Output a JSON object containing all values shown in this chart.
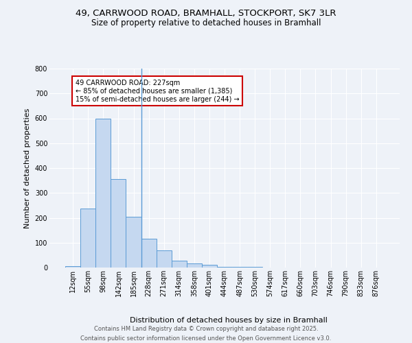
{
  "title_line1": "49, CARRWOOD ROAD, BRAMHALL, STOCKPORT, SK7 3LR",
  "title_line2": "Size of property relative to detached houses in Bramhall",
  "xlabel": "Distribution of detached houses by size in Bramhall",
  "ylabel": "Number of detached properties",
  "categories": [
    "12sqm",
    "55sqm",
    "98sqm",
    "142sqm",
    "185sqm",
    "228sqm",
    "271sqm",
    "314sqm",
    "358sqm",
    "401sqm",
    "444sqm",
    "487sqm",
    "530sqm",
    "574sqm",
    "617sqm",
    "660sqm",
    "703sqm",
    "746sqm",
    "790sqm",
    "833sqm",
    "876sqm"
  ],
  "values": [
    5,
    238,
    598,
    355,
    205,
    115,
    70,
    27,
    17,
    12,
    4,
    4,
    4,
    0,
    0,
    0,
    0,
    0,
    0,
    0,
    0
  ],
  "bar_color": "#c5d8f0",
  "bar_edge_color": "#5b9bd5",
  "highlight_index": 5,
  "highlight_line_color": "#5b9bd5",
  "annotation_text": "49 CARRWOOD ROAD: 227sqm\n← 85% of detached houses are smaller (1,385)\n15% of semi-detached houses are larger (244) →",
  "annotation_box_color": "#ffffff",
  "annotation_box_edge": "#cc0000",
  "ylim": [
    0,
    800
  ],
  "yticks": [
    0,
    100,
    200,
    300,
    400,
    500,
    600,
    700,
    800
  ],
  "background_color": "#eef2f8",
  "grid_color": "#ffffff",
  "footer_line1": "Contains HM Land Registry data © Crown copyright and database right 2025.",
  "footer_line2": "Contains public sector information licensed under the Open Government Licence v3.0.",
  "title_fontsize": 9.5,
  "subtitle_fontsize": 8.5,
  "axis_label_fontsize": 8,
  "tick_fontsize": 7,
  "footer_fontsize": 6,
  "annot_fontsize": 7
}
